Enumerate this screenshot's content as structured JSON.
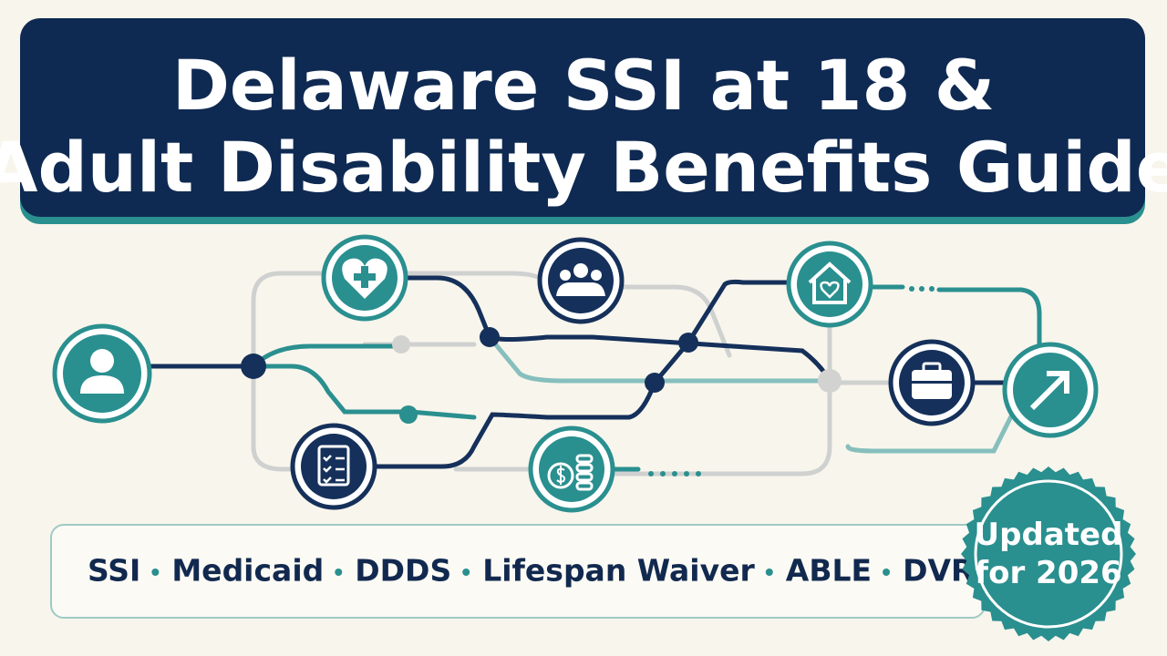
{
  "header": {
    "title_lines": [
      "Delaware SSI at 18 &",
      "Adult Disability Benefits Guide"
    ]
  },
  "tags": [
    "SSI",
    "Medicaid",
    "DDDS",
    "Lifespan Waiver",
    "ABLE",
    "DVR"
  ],
  "badge": {
    "lines": [
      "Updated",
      "for 2026"
    ]
  }
}
